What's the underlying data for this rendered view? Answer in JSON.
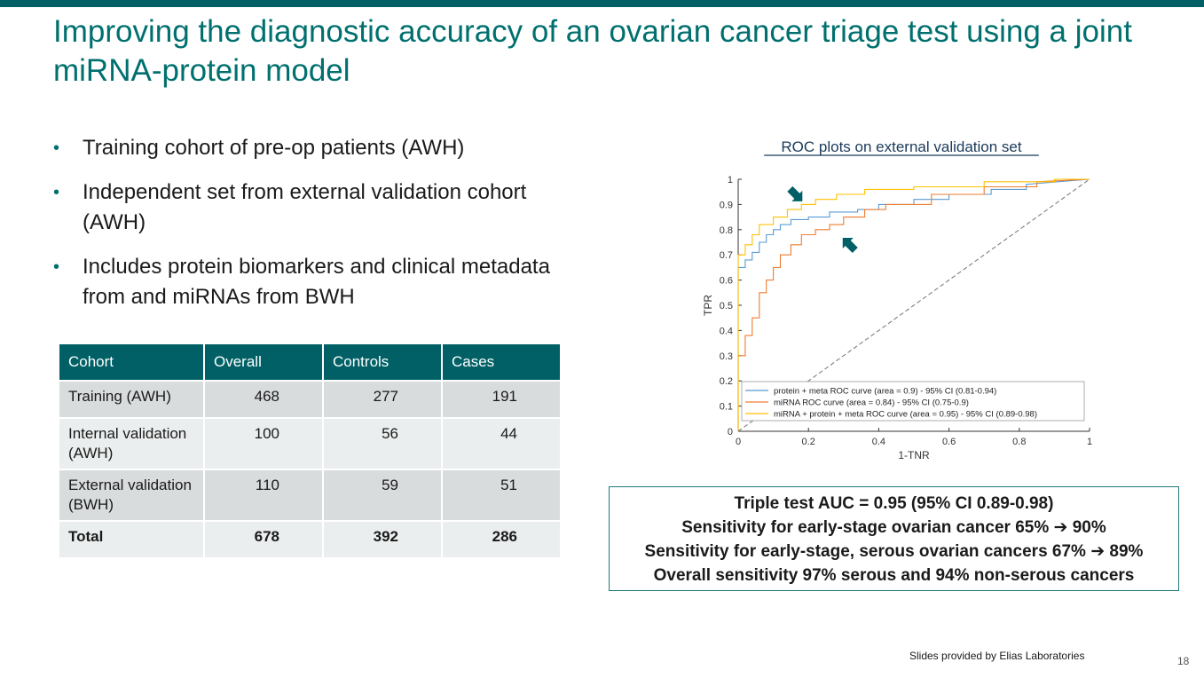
{
  "slide": {
    "title": "Improving the diagnostic accuracy of an ovarian cancer triage test using a joint miRNA-protein model",
    "bullets": [
      "Training cohort of pre-op patients (AWH)",
      "Independent set from external validation cohort (AWH)",
      "Includes protein biomarkers and clinical metadata from and miRNAs from BWH"
    ],
    "footer_credit": "Slides provided by Elias Laboratories",
    "page_number": "18",
    "colors": {
      "accent": "#006066",
      "title": "#00706f"
    }
  },
  "table": {
    "headers": [
      "Cohort",
      "Overall",
      "Controls",
      "Cases"
    ],
    "rows": [
      [
        "Training (AWH)",
        "468",
        "277",
        "191"
      ],
      [
        "Internal validation (AWH)",
        "100",
        "56",
        "44"
      ],
      [
        "External validation (BWH)",
        "110",
        "59",
        "51"
      ],
      [
        "Total",
        "678",
        "392",
        "286"
      ]
    ]
  },
  "summary": {
    "lines": [
      "Triple test AUC = 0.95 (95% CI 0.89-0.98)",
      "Sensitivity for early-stage ovarian cancer 65% ➔ 90%",
      "Sensitivity for early-stage, serous ovarian cancers 67% ➔ 89%",
      "Overall sensitivity 97% serous and 94% non-serous cancers"
    ]
  },
  "chart_data": {
    "type": "line",
    "title": "ROC plots on external validation set",
    "xlabel": "1-TNR",
    "ylabel": "TPR",
    "xlim": [
      0,
      1
    ],
    "ylim": [
      0,
      1
    ],
    "xticks": [
      "0",
      "0.2",
      "0.4",
      "0.6",
      "0.8",
      "1"
    ],
    "yticks": [
      "0",
      "0.1",
      "0.2",
      "0.3",
      "0.4",
      "0.5",
      "0.6",
      "0.7",
      "0.8",
      "0.9",
      "1"
    ],
    "legend_position": "bottom",
    "series": [
      {
        "name": "protein + meta ROC curve (area = 0.9) - 95% CI (0.81-0.94)",
        "color": "#5b9bd5",
        "x": [
          0,
          0,
          0.02,
          0.02,
          0.04,
          0.04,
          0.06,
          0.06,
          0.08,
          0.08,
          0.1,
          0.1,
          0.12,
          0.12,
          0.15,
          0.15,
          0.2,
          0.2,
          0.26,
          0.26,
          0.34,
          0.34,
          0.4,
          0.4,
          0.5,
          0.5,
          0.6,
          0.6,
          0.72,
          0.72,
          0.82,
          0.82,
          1
        ],
        "y": [
          0,
          0.65,
          0.65,
          0.68,
          0.68,
          0.71,
          0.71,
          0.75,
          0.75,
          0.78,
          0.78,
          0.8,
          0.8,
          0.82,
          0.82,
          0.84,
          0.84,
          0.85,
          0.85,
          0.87,
          0.87,
          0.88,
          0.88,
          0.9,
          0.9,
          0.92,
          0.92,
          0.94,
          0.94,
          0.96,
          0.96,
          0.98,
          1
        ]
      },
      {
        "name": "miRNA ROC curve (area = 0.84) - 95% CI (0.75-0.9)",
        "color": "#ed7d31",
        "x": [
          0,
          0,
          0.02,
          0.02,
          0.04,
          0.04,
          0.06,
          0.06,
          0.08,
          0.08,
          0.1,
          0.1,
          0.12,
          0.12,
          0.15,
          0.15,
          0.18,
          0.18,
          0.22,
          0.22,
          0.26,
          0.26,
          0.3,
          0.3,
          0.36,
          0.36,
          0.42,
          0.42,
          0.55,
          0.55,
          0.7,
          0.7,
          0.85,
          0.85,
          1
        ],
        "y": [
          0,
          0.3,
          0.3,
          0.38,
          0.38,
          0.45,
          0.45,
          0.55,
          0.55,
          0.6,
          0.6,
          0.65,
          0.65,
          0.7,
          0.7,
          0.74,
          0.74,
          0.78,
          0.78,
          0.8,
          0.8,
          0.82,
          0.82,
          0.85,
          0.85,
          0.88,
          0.88,
          0.9,
          0.9,
          0.94,
          0.94,
          0.97,
          0.97,
          0.99,
          1
        ]
      },
      {
        "name": "miRNA + protein + meta ROC curve (area = 0.95) - 95% CI (0.89-0.98)",
        "color": "#ffc000",
        "x": [
          0,
          0,
          0.02,
          0.02,
          0.04,
          0.04,
          0.06,
          0.06,
          0.1,
          0.1,
          0.14,
          0.14,
          0.18,
          0.18,
          0.22,
          0.22,
          0.28,
          0.28,
          0.36,
          0.36,
          0.5,
          0.5,
          0.7,
          0.7,
          0.9,
          0.9,
          1
        ],
        "y": [
          0,
          0.7,
          0.7,
          0.74,
          0.74,
          0.78,
          0.78,
          0.82,
          0.82,
          0.85,
          0.85,
          0.88,
          0.88,
          0.9,
          0.9,
          0.92,
          0.92,
          0.94,
          0.94,
          0.96,
          0.96,
          0.97,
          0.97,
          0.99,
          0.99,
          1,
          1
        ]
      },
      {
        "name": "chance",
        "color": "#7f7f7f",
        "x": [
          0,
          1
        ],
        "y": [
          0,
          1
        ]
      }
    ],
    "annotations": [
      {
        "type": "arrow",
        "x": 0.17,
        "y": 0.93,
        "points_to": "miRNA + protein + meta ROC curve"
      },
      {
        "type": "arrow",
        "x": 0.31,
        "y": 0.75,
        "points_to": "miRNA ROC curve"
      }
    ]
  }
}
